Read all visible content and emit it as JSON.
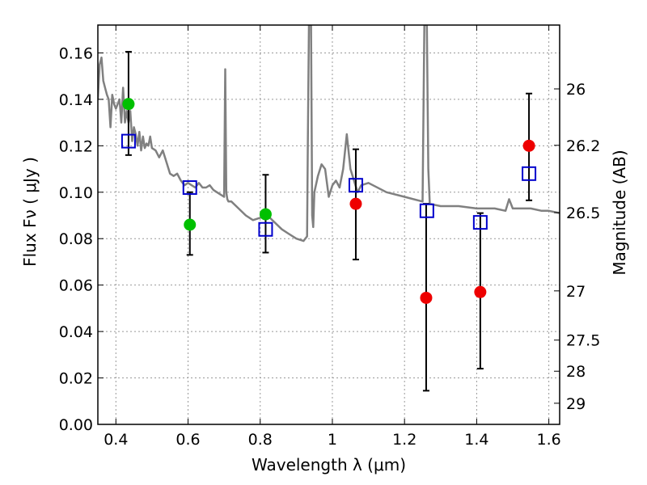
{
  "chart_data": {
    "type": "scatter",
    "xlabel": "Wavelength  λ (μm)",
    "ylabel": "Flux  Fν ( μJy )",
    "y2label": "Magnitude (AB)",
    "xlim": [
      0.35,
      1.63
    ],
    "ylim": [
      0.0,
      0.172
    ],
    "grid": true,
    "x_ticks": [
      0.4,
      0.6,
      0.8,
      1.0,
      1.2,
      1.4,
      1.6
    ],
    "x_tick_labels": [
      "0.4",
      "0.6",
      "0.8",
      "1",
      "1.2",
      "1.4",
      "1.6"
    ],
    "y_ticks": [
      0.0,
      0.02,
      0.04,
      0.06,
      0.08,
      0.1,
      0.12,
      0.14,
      0.16
    ],
    "y_tick_labels": [
      "0.00",
      "0.02",
      "0.04",
      "0.06",
      "0.08",
      "0.10",
      "0.12",
      "0.14",
      "0.16"
    ],
    "y2_ticks": [
      {
        "label": "26",
        "flux": 0.1445
      },
      {
        "label": "26.2",
        "flux": 0.1202
      },
      {
        "label": "26.5",
        "flux": 0.0912
      },
      {
        "label": "27",
        "flux": 0.0575
      },
      {
        "label": "27.5",
        "flux": 0.0363
      },
      {
        "label": "28",
        "flux": 0.0229
      },
      {
        "label": "29",
        "flux": 0.0091
      }
    ],
    "colors": {
      "model": "#808080",
      "green_points": "#00c000",
      "red_points": "#ee0000",
      "squares": "#0000cc",
      "errorbars": "#000000",
      "grid": "#999999"
    },
    "series": [
      {
        "type": "line",
        "x": [
          0.35,
          0.355,
          0.36,
          0.365,
          0.37,
          0.375,
          0.38,
          0.385,
          0.39,
          0.395,
          0.4,
          0.405,
          0.41,
          0.415,
          0.42,
          0.425,
          0.43,
          0.435,
          0.44,
          0.445,
          0.45,
          0.455,
          0.46,
          0.465,
          0.47,
          0.475,
          0.48,
          0.485,
          0.49,
          0.495,
          0.5,
          0.51,
          0.52,
          0.53,
          0.54,
          0.55,
          0.56,
          0.57,
          0.58,
          0.59,
          0.6,
          0.61,
          0.62,
          0.63,
          0.64,
          0.65,
          0.66,
          0.67,
          0.68,
          0.69,
          0.7,
          0.703,
          0.706,
          0.709,
          0.712,
          0.72,
          0.74,
          0.76,
          0.78,
          0.8,
          0.82,
          0.84,
          0.86,
          0.88,
          0.9,
          0.92,
          0.93,
          0.932,
          0.935,
          0.938,
          0.941,
          0.944,
          0.947,
          0.95,
          0.96,
          0.97,
          0.98,
          0.99,
          1.0,
          1.01,
          1.02,
          1.03,
          1.04,
          1.05,
          1.06,
          1.07,
          1.08,
          1.1,
          1.15,
          1.2,
          1.25,
          1.255,
          1.258,
          1.262,
          1.266,
          1.27,
          1.3,
          1.35,
          1.4,
          1.45,
          1.48,
          1.49,
          1.5,
          1.55,
          1.58,
          1.6,
          1.63
        ],
        "y": [
          0.14,
          0.155,
          0.158,
          0.148,
          0.145,
          0.142,
          0.14,
          0.128,
          0.142,
          0.138,
          0.136,
          0.138,
          0.14,
          0.13,
          0.145,
          0.13,
          0.135,
          0.13,
          0.135,
          0.122,
          0.128,
          0.125,
          0.12,
          0.126,
          0.118,
          0.124,
          0.119,
          0.121,
          0.12,
          0.124,
          0.119,
          0.118,
          0.115,
          0.118,
          0.113,
          0.108,
          0.107,
          0.108,
          0.105,
          0.103,
          0.104,
          0.103,
          0.102,
          0.104,
          0.102,
          0.102,
          0.103,
          0.101,
          0.1,
          0.099,
          0.098,
          0.153,
          0.1,
          0.097,
          0.096,
          0.096,
          0.093,
          0.09,
          0.088,
          0.089,
          0.09,
          0.087,
          0.084,
          0.082,
          0.08,
          0.079,
          0.081,
          0.12,
          0.172,
          0.172,
          0.172,
          0.09,
          0.085,
          0.1,
          0.107,
          0.112,
          0.11,
          0.098,
          0.103,
          0.105,
          0.102,
          0.11,
          0.125,
          0.11,
          0.105,
          0.1,
          0.103,
          0.104,
          0.1,
          0.098,
          0.096,
          0.172,
          0.172,
          0.172,
          0.11,
          0.095,
          0.094,
          0.094,
          0.093,
          0.093,
          0.092,
          0.097,
          0.093,
          0.093,
          0.092,
          0.092,
          0.091
        ]
      },
      {
        "type": "points",
        "marker": "circle",
        "color": "green",
        "x": [
          0.435,
          0.605,
          0.815
        ],
        "y": [
          0.138,
          0.086,
          0.0905
        ]
      },
      {
        "type": "points",
        "marker": "circle",
        "color": "red",
        "x": [
          1.065,
          1.26,
          1.41,
          1.545
        ],
        "y": [
          0.095,
          0.0545,
          0.057,
          0.12
        ]
      },
      {
        "type": "points",
        "marker": "square-open",
        "color": "blue",
        "x": [
          0.435,
          0.605,
          0.815,
          1.065,
          1.262,
          1.41,
          1.545
        ],
        "y": [
          0.122,
          0.102,
          0.084,
          0.103,
          0.092,
          0.087,
          0.108
        ]
      },
      {
        "type": "errorbars",
        "x": [
          0.435,
          0.605,
          0.815,
          1.065,
          1.26,
          1.41,
          1.545
        ],
        "low": [
          0.116,
          0.073,
          0.074,
          0.071,
          0.0145,
          0.024,
          0.0965
        ],
        "high": [
          0.1605,
          0.1,
          0.1075,
          0.1185,
          0.095,
          0.091,
          0.1425
        ]
      }
    ]
  }
}
